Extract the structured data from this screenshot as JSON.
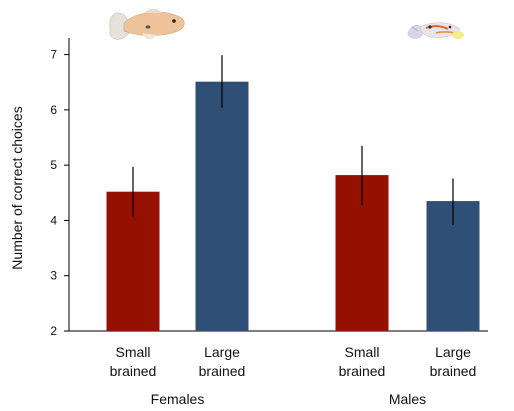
{
  "chart_data": {
    "type": "bar",
    "title": "",
    "ylabel": "Number of correct choices",
    "xlabel": "",
    "ylim": [
      2,
      7.3
    ],
    "yticks": [
      2,
      3,
      4,
      5,
      6,
      7
    ],
    "groups": [
      {
        "label": "Females",
        "bars": [
          {
            "label_line1": "Small",
            "label_line2": "brained",
            "value": 4.52,
            "err_low": 4.07,
            "err_high": 4.97,
            "color": "#941100"
          },
          {
            "label_line1": "Large",
            "label_line2": "brained",
            "value": 6.51,
            "err_low": 6.04,
            "err_high": 6.99,
            "color": "#2f5074"
          }
        ]
      },
      {
        "label": "Males",
        "bars": [
          {
            "label_line1": "Small",
            "label_line2": "brained",
            "value": 4.82,
            "err_low": 4.27,
            "err_high": 5.35,
            "color": "#941100"
          },
          {
            "label_line1": "Large",
            "label_line2": "brained",
            "value": 4.35,
            "err_low": 3.92,
            "err_high": 4.76,
            "color": "#2f5074"
          }
        ]
      }
    ],
    "icons": [
      "female-guppy-icon",
      "male-guppy-icon"
    ]
  }
}
